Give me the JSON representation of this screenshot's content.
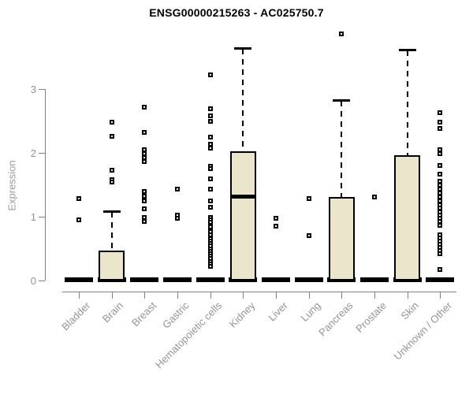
{
  "chart_data": {
    "type": "boxplot",
    "title": "ENSG00000215263 - AC025750.7",
    "ylabel": "Expression",
    "xlabel": "",
    "yticks": [
      0,
      1,
      2,
      3
    ],
    "ylim": [
      0,
      3.95
    ],
    "grid": false,
    "box_fill_color": "#ebe5cc",
    "box_stroke_color": "#000000",
    "axis_color": "#828282",
    "label_color": "#949494",
    "categories": [
      "Bladder",
      "Brain",
      "Breast",
      "Gastric",
      "Hematopoietic cells",
      "Kidney",
      "Liver",
      "Lung",
      "Pancreas",
      "Prostate",
      "Skin",
      "Unknown / Other"
    ],
    "boxes": [
      {
        "category": "Bladder",
        "whisker_low": 0,
        "q1": 0,
        "median": 0,
        "q3": 0,
        "whisker_high": 0,
        "outliers": [
          1.28,
          0.95
        ]
      },
      {
        "category": "Brain",
        "whisker_low": 0,
        "q1": 0,
        "median": 0,
        "q3": 0.47,
        "whisker_high": 1.08,
        "outliers": [
          2.48,
          2.26,
          1.73,
          1.58,
          1.54
        ]
      },
      {
        "category": "Breast",
        "whisker_low": 0,
        "q1": 0,
        "median": 0,
        "q3": 0,
        "whisker_high": 0,
        "outliers": [
          2.72,
          2.32,
          2.05,
          1.99,
          1.93,
          1.86,
          1.39,
          1.32,
          1.25,
          1.12,
          0.99,
          0.93
        ]
      },
      {
        "category": "Gastric",
        "whisker_low": 0,
        "q1": 0,
        "median": 0,
        "q3": 0,
        "whisker_high": 0,
        "outliers": [
          1.43,
          1.02,
          0.97
        ]
      },
      {
        "category": "Hematopoietic cells",
        "whisker_low": 0,
        "q1": 0,
        "median": 0,
        "q3": 0,
        "whisker_high": 0,
        "outliers": [
          3.22,
          2.69,
          2.58,
          2.49,
          2.25,
          2.13,
          2.07,
          1.79,
          1.75,
          1.59,
          1.43,
          1.25,
          1.15,
          0.99,
          0.95,
          0.91,
          0.87,
          0.84,
          0.76,
          0.72,
          0.66,
          0.62,
          0.58,
          0.54,
          0.5,
          0.46,
          0.42,
          0.38,
          0.34,
          0.3,
          0.26,
          0.22
        ]
      },
      {
        "category": "Kidney",
        "whisker_low": 0,
        "q1": 0,
        "median": 1.32,
        "q3": 2.02,
        "whisker_high": 3.63,
        "outliers": []
      },
      {
        "category": "Liver",
        "whisker_low": 0,
        "q1": 0,
        "median": 0,
        "q3": 0,
        "whisker_high": 0,
        "outliers": [
          0.98,
          0.85
        ]
      },
      {
        "category": "Lung",
        "whisker_low": 0,
        "q1": 0,
        "median": 0,
        "q3": 0,
        "whisker_high": 0,
        "outliers": [
          1.28,
          0.7
        ]
      },
      {
        "category": "Pancreas",
        "whisker_low": 0,
        "q1": 0,
        "median": 0,
        "q3": 1.31,
        "whisker_high": 2.81,
        "outliers": [
          3.87
        ]
      },
      {
        "category": "Prostate",
        "whisker_low": 0,
        "q1": 0,
        "median": 0,
        "q3": 0,
        "whisker_high": 0,
        "outliers": [
          1.31
        ]
      },
      {
        "category": "Skin",
        "whisker_low": 0,
        "q1": 0,
        "median": 0,
        "q3": 1.96,
        "whisker_high": 3.6,
        "outliers": []
      },
      {
        "category": "Unknown / Other",
        "whisker_low": 0,
        "q1": 0,
        "median": 0,
        "q3": 0,
        "whisker_high": 0,
        "outliers": [
          2.63,
          2.48,
          2.38,
          2.05,
          1.99,
          1.8,
          1.67,
          1.56,
          1.5,
          1.43,
          1.37,
          1.31,
          1.25,
          1.19,
          1.13,
          1.08,
          1.02,
          0.97,
          0.92,
          0.86,
          0.72,
          0.67,
          0.62,
          0.57,
          0.52,
          0.47,
          0.42,
          0.17
        ]
      }
    ]
  }
}
